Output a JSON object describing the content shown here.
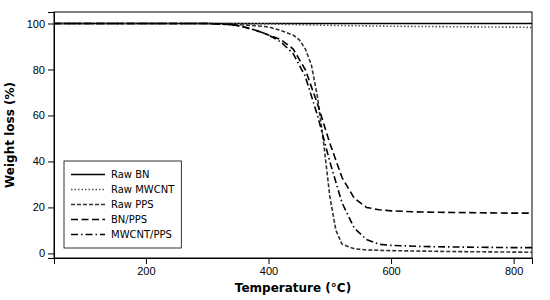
{
  "chart_data": {
    "type": "line",
    "xlabel": "Temperature (°C)",
    "ylabel": "Weight loss (%)",
    "xlim": [
      50,
      830
    ],
    "ylim": [
      -2,
      105
    ],
    "xticks": [
      200,
      400,
      600,
      800
    ],
    "yticks": [
      0,
      20,
      40,
      60,
      80,
      100
    ],
    "grid": false,
    "legend": "lower left",
    "series": [
      {
        "name": "Raw BN",
        "color": "#000000",
        "line_style": "solid",
        "x": [
          50,
          830
        ],
        "values": [
          100,
          100
        ]
      },
      {
        "name": "Raw MWCNT",
        "color": "#555555",
        "line_style": "dotted",
        "x": [
          50,
          300,
          400,
          450,
          500,
          550,
          600,
          650,
          700,
          750,
          800,
          830
        ],
        "values": [
          100,
          100,
          99.8,
          99.5,
          99.2,
          99.0,
          98.8,
          98.7,
          98.6,
          98.5,
          98.4,
          98.3
        ]
      },
      {
        "name": "Raw PPS",
        "color": "#333333",
        "line_style": "dashed_dense",
        "x": [
          50,
          300,
          350,
          380,
          400,
          420,
          440,
          450,
          460,
          470,
          480,
          490,
          500,
          510,
          520,
          540,
          560,
          600,
          700,
          830
        ],
        "values": [
          100,
          100,
          99.5,
          99,
          98.5,
          97,
          95,
          93,
          89,
          82,
          68,
          48,
          25,
          10,
          4,
          2,
          1.5,
          1.2,
          0.8,
          0.5
        ]
      },
      {
        "name": "BN/PPS",
        "color": "#000000",
        "line_style": "dashed",
        "x": [
          50,
          300,
          340,
          360,
          380,
          400,
          420,
          440,
          460,
          480,
          500,
          520,
          540,
          560,
          580,
          600,
          650,
          700,
          800,
          830
        ],
        "values": [
          100,
          100,
          99.5,
          98.5,
          97,
          95,
          93,
          89,
          80,
          65,
          48,
          33,
          24,
          20,
          19,
          18.5,
          18,
          17.8,
          17.5,
          17.5
        ]
      },
      {
        "name": "MWCNT/PPS",
        "color": "#000000",
        "line_style": "dashdot",
        "x": [
          50,
          300,
          340,
          360,
          380,
          400,
          420,
          440,
          460,
          480,
          500,
          520,
          540,
          560,
          580,
          600,
          650,
          700,
          800,
          830
        ],
        "values": [
          100,
          100,
          99.5,
          98.5,
          97,
          95,
          92,
          87,
          77,
          60,
          40,
          22,
          11,
          6,
          4,
          3.5,
          3,
          2.8,
          2.5,
          2.5
        ]
      }
    ]
  }
}
